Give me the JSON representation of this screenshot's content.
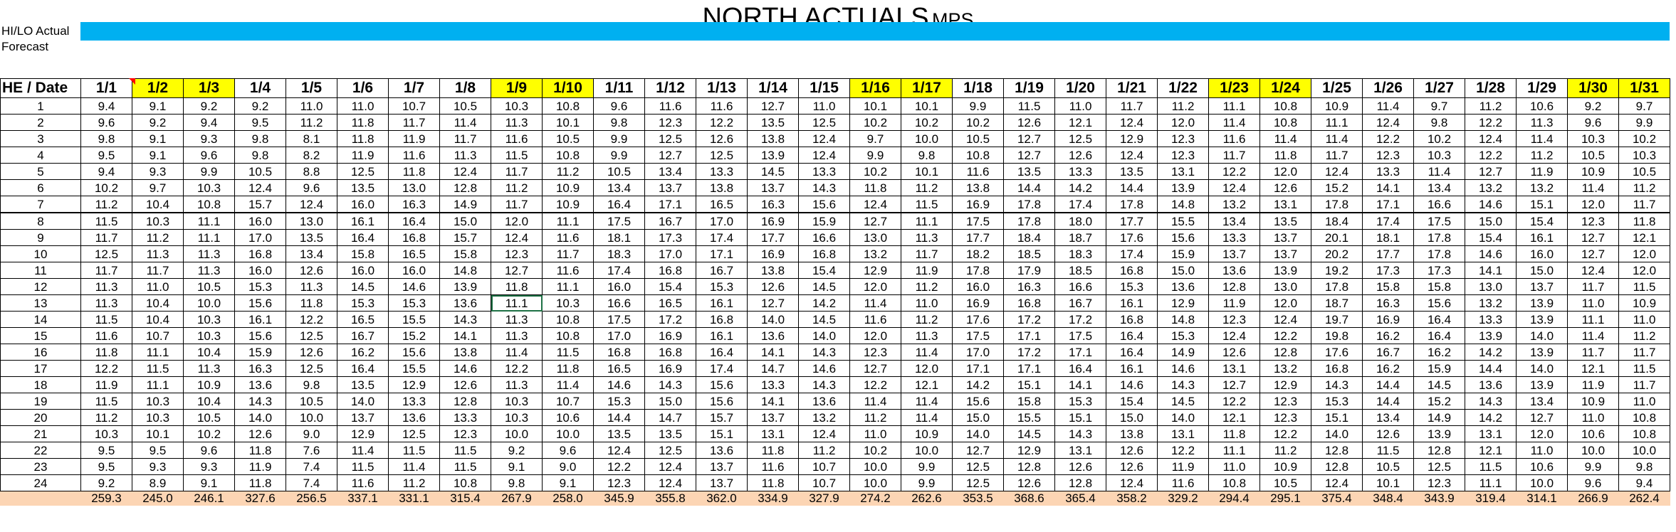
{
  "title": {
    "main": "NORTH ACTUALS",
    "sub": "MPS"
  },
  "rows_labels": {
    "hilo": "HI/LO Actual",
    "forecast": "Forecast"
  },
  "colors": {
    "hilo_bar": "#00b0f0",
    "highlight": "#ffff00",
    "totals_bg": "#fcd5b4",
    "selected_border": "#1e7145",
    "comment_marker": "#ff0000"
  },
  "header": {
    "first": "HE / Date",
    "dates": [
      "1/1",
      "1/2",
      "1/3",
      "1/4",
      "1/5",
      "1/6",
      "1/7",
      "1/8",
      "1/9",
      "1/10",
      "1/11",
      "1/12",
      "1/13",
      "1/14",
      "1/15",
      "1/16",
      "1/17",
      "1/18",
      "1/19",
      "1/20",
      "1/21",
      "1/22",
      "1/23",
      "1/24",
      "1/25",
      "1/26",
      "1/27",
      "1/28",
      "1/29",
      "1/30",
      "1/31"
    ],
    "highlighted": [
      "1/2",
      "1/3",
      "1/9",
      "1/10",
      "1/16",
      "1/17",
      "1/23",
      "1/24",
      "1/30",
      "1/31"
    ]
  },
  "selected_cell": {
    "he": 13,
    "date": "1/9"
  },
  "rows": [
    {
      "he": "1",
      "v": [
        "9.4",
        "9.1",
        "9.2",
        "9.2",
        "11.0",
        "11.0",
        "10.7",
        "10.5",
        "10.3",
        "10.8",
        "9.6",
        "11.6",
        "11.6",
        "12.7",
        "11.0",
        "10.1",
        "10.1",
        "9.9",
        "11.5",
        "11.0",
        "11.7",
        "11.2",
        "11.1",
        "10.8",
        "10.9",
        "11.4",
        "9.7",
        "11.2",
        "10.6",
        "9.2",
        "9.7"
      ]
    },
    {
      "he": "2",
      "v": [
        "9.6",
        "9.2",
        "9.4",
        "9.5",
        "11.2",
        "11.8",
        "11.7",
        "11.4",
        "11.3",
        "10.1",
        "9.8",
        "12.3",
        "12.2",
        "13.5",
        "12.5",
        "10.2",
        "10.2",
        "10.2",
        "12.6",
        "12.1",
        "12.4",
        "12.0",
        "11.4",
        "10.8",
        "11.1",
        "12.4",
        "9.8",
        "12.2",
        "11.3",
        "9.6",
        "9.9"
      ]
    },
    {
      "he": "3",
      "v": [
        "9.8",
        "9.1",
        "9.3",
        "9.8",
        "8.1",
        "11.8",
        "11.9",
        "11.7",
        "11.6",
        "10.5",
        "9.9",
        "12.5",
        "12.6",
        "13.8",
        "12.4",
        "9.7",
        "10.0",
        "10.5",
        "12.7",
        "12.5",
        "12.9",
        "12.3",
        "11.6",
        "11.4",
        "11.4",
        "12.2",
        "10.2",
        "12.4",
        "11.4",
        "10.3",
        "10.2"
      ]
    },
    {
      "he": "4",
      "v": [
        "9.5",
        "9.1",
        "9.6",
        "9.8",
        "8.2",
        "11.9",
        "11.6",
        "11.3",
        "11.5",
        "10.8",
        "9.9",
        "12.7",
        "12.5",
        "13.9",
        "12.4",
        "9.9",
        "9.8",
        "10.8",
        "12.7",
        "12.6",
        "12.4",
        "12.3",
        "11.7",
        "11.8",
        "11.7",
        "12.3",
        "10.3",
        "12.2",
        "11.2",
        "10.5",
        "10.3"
      ]
    },
    {
      "he": "5",
      "v": [
        "9.4",
        "9.3",
        "9.9",
        "10.5",
        "8.8",
        "12.5",
        "11.8",
        "12.4",
        "11.7",
        "11.2",
        "10.5",
        "13.4",
        "13.3",
        "14.5",
        "13.3",
        "10.2",
        "10.1",
        "11.6",
        "13.5",
        "13.3",
        "13.5",
        "13.1",
        "12.2",
        "12.0",
        "12.4",
        "13.3",
        "11.4",
        "12.7",
        "11.9",
        "10.9",
        "10.5"
      ]
    },
    {
      "he": "6",
      "v": [
        "10.2",
        "9.7",
        "10.3",
        "12.4",
        "9.6",
        "13.5",
        "13.0",
        "12.8",
        "11.2",
        "10.9",
        "13.4",
        "13.7",
        "13.8",
        "13.7",
        "14.3",
        "11.8",
        "11.2",
        "13.8",
        "14.4",
        "14.2",
        "14.4",
        "13.9",
        "12.4",
        "12.6",
        "15.2",
        "14.1",
        "13.4",
        "13.2",
        "13.2",
        "11.4",
        "11.2"
      ]
    },
    {
      "he": "7",
      "v": [
        "11.2",
        "10.4",
        "10.8",
        "15.7",
        "12.4",
        "16.0",
        "16.3",
        "14.9",
        "11.7",
        "10.9",
        "16.4",
        "17.1",
        "16.5",
        "16.3",
        "15.6",
        "12.4",
        "11.5",
        "16.9",
        "17.8",
        "17.4",
        "17.8",
        "14.8",
        "13.2",
        "13.1",
        "17.8",
        "17.1",
        "16.6",
        "14.6",
        "15.1",
        "12.0",
        "11.7"
      ]
    },
    {
      "he": "8",
      "v": [
        "11.5",
        "10.3",
        "11.1",
        "16.0",
        "13.0",
        "16.1",
        "16.4",
        "15.0",
        "12.0",
        "11.1",
        "17.5",
        "16.7",
        "17.0",
        "16.9",
        "15.9",
        "12.7",
        "11.1",
        "17.5",
        "17.8",
        "18.0",
        "17.7",
        "15.5",
        "13.4",
        "13.5",
        "18.4",
        "17.4",
        "17.5",
        "15.0",
        "15.4",
        "12.3",
        "11.8"
      ]
    },
    {
      "he": "9",
      "v": [
        "11.7",
        "11.2",
        "11.1",
        "17.0",
        "13.5",
        "16.4",
        "16.8",
        "15.7",
        "12.4",
        "11.6",
        "18.1",
        "17.3",
        "17.4",
        "17.7",
        "16.6",
        "13.0",
        "11.3",
        "17.7",
        "18.4",
        "18.7",
        "17.6",
        "15.6",
        "13.3",
        "13.7",
        "20.1",
        "18.1",
        "17.8",
        "15.4",
        "16.1",
        "12.7",
        "12.1"
      ]
    },
    {
      "he": "10",
      "v": [
        "12.5",
        "11.3",
        "11.3",
        "16.8",
        "13.4",
        "15.8",
        "16.5",
        "15.8",
        "12.3",
        "11.7",
        "18.3",
        "17.0",
        "17.1",
        "16.9",
        "16.8",
        "13.2",
        "11.7",
        "18.2",
        "18.5",
        "18.3",
        "17.4",
        "15.9",
        "13.7",
        "13.7",
        "20.2",
        "17.7",
        "17.8",
        "14.6",
        "16.0",
        "12.7",
        "12.0"
      ]
    },
    {
      "he": "11",
      "v": [
        "11.7",
        "11.7",
        "11.3",
        "16.0",
        "12.6",
        "16.0",
        "16.0",
        "14.8",
        "12.7",
        "11.6",
        "17.4",
        "16.8",
        "16.7",
        "13.8",
        "15.4",
        "12.9",
        "11.9",
        "17.8",
        "17.9",
        "18.5",
        "16.8",
        "15.0",
        "13.6",
        "13.9",
        "19.2",
        "17.3",
        "17.3",
        "14.1",
        "15.0",
        "12.4",
        "12.0"
      ]
    },
    {
      "he": "12",
      "v": [
        "11.3",
        "11.0",
        "10.5",
        "15.3",
        "11.3",
        "14.5",
        "14.6",
        "13.9",
        "11.8",
        "11.1",
        "16.0",
        "15.4",
        "15.3",
        "12.6",
        "14.5",
        "12.0",
        "11.2",
        "16.0",
        "16.3",
        "16.6",
        "15.3",
        "13.6",
        "12.8",
        "13.0",
        "17.8",
        "15.8",
        "15.8",
        "13.0",
        "13.7",
        "11.7",
        "11.5"
      ]
    },
    {
      "he": "13",
      "v": [
        "11.3",
        "10.4",
        "10.0",
        "15.6",
        "11.8",
        "15.3",
        "15.3",
        "13.6",
        "11.1",
        "10.3",
        "16.6",
        "16.5",
        "16.1",
        "12.7",
        "14.2",
        "11.4",
        "11.0",
        "16.9",
        "16.8",
        "16.7",
        "16.1",
        "12.9",
        "11.9",
        "12.0",
        "18.7",
        "16.3",
        "15.6",
        "13.2",
        "13.9",
        "11.0",
        "10.9"
      ]
    },
    {
      "he": "14",
      "v": [
        "11.5",
        "10.4",
        "10.3",
        "16.1",
        "12.2",
        "16.5",
        "15.5",
        "14.3",
        "11.3",
        "10.8",
        "17.5",
        "17.2",
        "16.8",
        "14.0",
        "14.5",
        "11.6",
        "11.2",
        "17.6",
        "17.2",
        "17.2",
        "16.8",
        "14.8",
        "12.3",
        "12.4",
        "19.7",
        "16.9",
        "16.4",
        "13.3",
        "13.9",
        "11.1",
        "11.0"
      ]
    },
    {
      "he": "15",
      "v": [
        "11.6",
        "10.7",
        "10.3",
        "15.6",
        "12.5",
        "16.7",
        "15.2",
        "14.1",
        "11.3",
        "10.8",
        "17.0",
        "16.9",
        "16.1",
        "13.6",
        "14.0",
        "12.0",
        "11.3",
        "17.5",
        "17.1",
        "17.5",
        "16.4",
        "15.3",
        "12.4",
        "12.2",
        "19.8",
        "16.2",
        "16.4",
        "13.9",
        "14.0",
        "11.4",
        "11.2"
      ]
    },
    {
      "he": "16",
      "v": [
        "11.8",
        "11.1",
        "10.4",
        "15.9",
        "12.6",
        "16.2",
        "15.6",
        "13.8",
        "11.4",
        "11.5",
        "16.8",
        "16.8",
        "16.4",
        "14.1",
        "14.3",
        "12.3",
        "11.4",
        "17.0",
        "17.2",
        "17.1",
        "16.4",
        "14.9",
        "12.6",
        "12.8",
        "17.6",
        "16.7",
        "16.2",
        "14.2",
        "13.9",
        "11.7",
        "11.7"
      ]
    },
    {
      "he": "17",
      "v": [
        "12.2",
        "11.5",
        "11.3",
        "16.3",
        "12.5",
        "16.4",
        "15.5",
        "14.6",
        "12.2",
        "11.8",
        "16.5",
        "16.9",
        "17.4",
        "14.7",
        "14.6",
        "12.7",
        "12.0",
        "17.1",
        "17.1",
        "16.4",
        "16.1",
        "14.6",
        "13.1",
        "13.2",
        "16.8",
        "16.2",
        "15.9",
        "14.4",
        "14.0",
        "12.1",
        "11.5"
      ]
    },
    {
      "he": "18",
      "v": [
        "11.9",
        "11.1",
        "10.9",
        "13.6",
        "9.8",
        "13.5",
        "12.9",
        "12.6",
        "11.3",
        "11.4",
        "14.6",
        "14.3",
        "15.6",
        "13.3",
        "14.3",
        "12.2",
        "12.1",
        "14.2",
        "15.1",
        "14.1",
        "14.6",
        "14.3",
        "12.7",
        "12.9",
        "14.3",
        "14.4",
        "14.5",
        "13.6",
        "13.9",
        "11.9",
        "11.7"
      ]
    },
    {
      "he": "19",
      "v": [
        "11.5",
        "10.3",
        "10.4",
        "14.3",
        "10.5",
        "14.0",
        "13.3",
        "12.8",
        "10.3",
        "10.7",
        "15.3",
        "15.0",
        "15.6",
        "14.1",
        "13.6",
        "11.4",
        "11.4",
        "15.6",
        "15.8",
        "15.3",
        "15.4",
        "14.5",
        "12.2",
        "12.3",
        "15.3",
        "14.4",
        "15.2",
        "14.3",
        "13.4",
        "10.9",
        "11.0"
      ]
    },
    {
      "he": "20",
      "v": [
        "11.2",
        "10.3",
        "10.5",
        "14.0",
        "10.0",
        "13.7",
        "13.6",
        "13.3",
        "10.3",
        "10.6",
        "14.4",
        "14.7",
        "15.7",
        "13.7",
        "13.2",
        "11.2",
        "11.4",
        "15.0",
        "15.5",
        "15.1",
        "15.0",
        "14.0",
        "12.1",
        "12.3",
        "15.1",
        "13.4",
        "14.9",
        "14.2",
        "12.7",
        "11.0",
        "10.8"
      ]
    },
    {
      "he": "21",
      "v": [
        "10.3",
        "10.1",
        "10.2",
        "12.6",
        "9.0",
        "12.9",
        "12.5",
        "12.3",
        "10.0",
        "10.0",
        "13.5",
        "13.5",
        "15.1",
        "13.1",
        "12.4",
        "11.0",
        "10.9",
        "14.0",
        "14.5",
        "14.3",
        "13.8",
        "13.1",
        "11.8",
        "12.2",
        "14.0",
        "12.6",
        "13.9",
        "13.1",
        "12.0",
        "10.6",
        "10.8"
      ]
    },
    {
      "he": "22",
      "v": [
        "9.5",
        "9.5",
        "9.6",
        "11.8",
        "7.6",
        "11.4",
        "11.5",
        "11.5",
        "9.2",
        "9.6",
        "12.4",
        "12.5",
        "13.6",
        "11.8",
        "11.2",
        "10.2",
        "10.0",
        "12.7",
        "12.9",
        "13.1",
        "12.6",
        "12.2",
        "11.1",
        "11.2",
        "12.8",
        "11.5",
        "12.8",
        "12.1",
        "11.0",
        "10.0",
        "10.0"
      ]
    },
    {
      "he": "23",
      "v": [
        "9.5",
        "9.3",
        "9.3",
        "11.9",
        "7.4",
        "11.5",
        "11.4",
        "11.5",
        "9.1",
        "9.0",
        "12.2",
        "12.4",
        "13.7",
        "11.6",
        "10.7",
        "10.0",
        "9.9",
        "12.5",
        "12.8",
        "12.6",
        "12.6",
        "11.9",
        "11.0",
        "10.9",
        "12.8",
        "10.5",
        "12.5",
        "11.5",
        "10.6",
        "9.9",
        "9.8"
      ]
    },
    {
      "he": "24",
      "v": [
        "9.2",
        "8.9",
        "9.1",
        "11.8",
        "7.4",
        "11.6",
        "11.2",
        "10.8",
        "9.8",
        "9.1",
        "12.3",
        "12.4",
        "13.7",
        "11.8",
        "10.7",
        "10.0",
        "9.9",
        "12.5",
        "12.6",
        "12.8",
        "12.4",
        "11.6",
        "10.8",
        "10.5",
        "12.4",
        "10.1",
        "12.3",
        "11.1",
        "10.0",
        "9.6",
        "9.4"
      ]
    }
  ],
  "totals": [
    "259.3",
    "245.0",
    "246.1",
    "327.6",
    "256.5",
    "337.1",
    "331.1",
    "315.4",
    "267.9",
    "258.0",
    "345.9",
    "355.8",
    "362.0",
    "334.9",
    "327.9",
    "274.2",
    "262.6",
    "353.5",
    "368.6",
    "365.4",
    "358.2",
    "329.2",
    "294.4",
    "295.1",
    "375.4",
    "348.4",
    "343.9",
    "319.4",
    "314.1",
    "266.9",
    "262.4"
  ]
}
